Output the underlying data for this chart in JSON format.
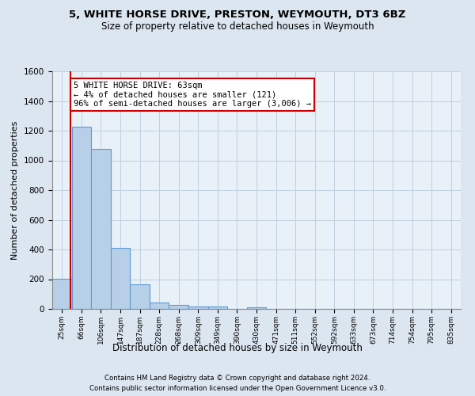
{
  "title": "5, WHITE HORSE DRIVE, PRESTON, WEYMOUTH, DT3 6BZ",
  "subtitle": "Size of property relative to detached houses in Weymouth",
  "xlabel": "Distribution of detached houses by size in Weymouth",
  "ylabel": "Number of detached properties",
  "footnote1": "Contains HM Land Registry data © Crown copyright and database right 2024.",
  "footnote2": "Contains public sector information licensed under the Open Government Licence v3.0.",
  "bin_labels": [
    "25sqm",
    "66sqm",
    "106sqm",
    "147sqm",
    "187sqm",
    "228sqm",
    "268sqm",
    "309sqm",
    "349sqm",
    "390sqm",
    "430sqm",
    "471sqm",
    "511sqm",
    "552sqm",
    "592sqm",
    "633sqm",
    "673sqm",
    "714sqm",
    "754sqm",
    "795sqm",
    "835sqm"
  ],
  "bar_values": [
    205,
    1225,
    1075,
    410,
    165,
    45,
    25,
    18,
    15,
    0,
    12,
    0,
    0,
    0,
    0,
    0,
    0,
    0,
    0,
    0,
    0
  ],
  "bar_color": "#b8cfe8",
  "bar_edge_color": "#5b9bd5",
  "ylim": [
    0,
    1600
  ],
  "yticks": [
    0,
    200,
    400,
    600,
    800,
    1000,
    1200,
    1400,
    1600
  ],
  "property_label": "5 WHITE HORSE DRIVE: 63sqm",
  "annotation_line1": "← 4% of detached houses are smaller (121)",
  "annotation_line2": "96% of semi-detached houses are larger (3,006) →",
  "annotation_box_color": "#ffffff",
  "annotation_border_color": "#cc0000",
  "red_line_color": "#cc0000",
  "grid_color": "#c0cfe0",
  "bg_color": "#dce6f0",
  "plot_bg_color": "#e8f0f8"
}
